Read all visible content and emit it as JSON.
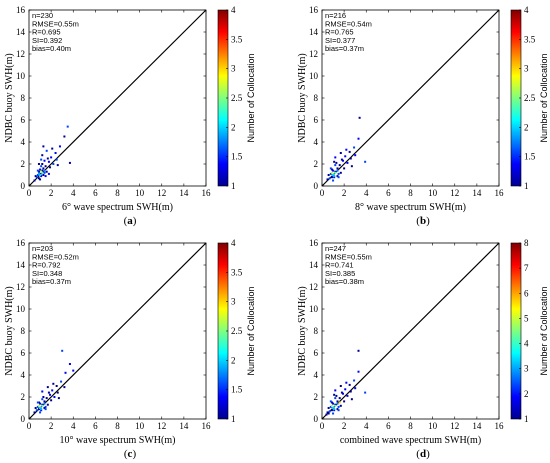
{
  "chart_data": [
    {
      "type": "scatter",
      "panel_label": "(a)",
      "xlabel": "6° wave spectrum SWH(m)",
      "ylabel": "NDBC buoy SWH(m)",
      "xlim": [
        0,
        16
      ],
      "ylim": [
        0,
        16
      ],
      "xticks": [
        "0",
        "2",
        "4",
        "6",
        "8",
        "10",
        "12",
        "14",
        "16"
      ],
      "yticks": [
        "0",
        "2",
        "4",
        "6",
        "8",
        "10",
        "12",
        "14",
        "16"
      ],
      "stats": [
        "n=230",
        "RMSE=0.55m",
        "R=0.695",
        "SI=0.392",
        "bias=0.40m"
      ],
      "colorbar": {
        "title": "Number of Collocation",
        "range": [
          1,
          4
        ],
        "ticks": [
          "1",
          "1.5",
          "2",
          "2.5",
          "3",
          "3.5",
          "4"
        ]
      },
      "reference_line": "1:1",
      "points": [
        [
          1.0,
          1.1
        ],
        [
          0.9,
          0.7
        ],
        [
          1.2,
          1.4
        ],
        [
          0.8,
          1.0
        ],
        [
          1.1,
          0.9
        ],
        [
          1.3,
          1.6
        ],
        [
          0.7,
          0.8
        ],
        [
          1.5,
          1.8
        ],
        [
          1.0,
          1.5
        ],
        [
          1.4,
          1.2
        ],
        [
          0.6,
          0.9
        ],
        [
          1.2,
          2.0
        ],
        [
          1.8,
          2.2
        ],
        [
          0.9,
          1.3
        ],
        [
          1.6,
          1.3
        ],
        [
          1.1,
          1.8
        ],
        [
          2.0,
          2.6
        ],
        [
          1.3,
          1.0
        ],
        [
          0.8,
          1.4
        ],
        [
          1.7,
          2.5
        ],
        [
          1.4,
          2.3
        ],
        [
          2.2,
          2.0
        ],
        [
          1.0,
          0.6
        ],
        [
          1.9,
          1.7
        ],
        [
          2.4,
          3.0
        ],
        [
          1.2,
          2.8
        ],
        [
          0.5,
          0.5
        ],
        [
          1.6,
          3.2
        ],
        [
          2.8,
          3.6
        ],
        [
          3.2,
          4.5
        ],
        [
          3.5,
          5.4
        ],
        [
          2.6,
          1.9
        ],
        [
          1.5,
          0.9
        ],
        [
          1.1,
          2.4
        ],
        [
          0.9,
          2.0
        ],
        [
          2.1,
          3.4
        ],
        [
          1.8,
          1.1
        ],
        [
          3.7,
          2.1
        ],
        [
          1.3,
          3.6
        ],
        [
          2.5,
          2.4
        ]
      ],
      "dense_points": [
        [
          1.0,
          1.0
        ],
        [
          1.2,
          1.2
        ],
        [
          1.4,
          1.4
        ],
        [
          0.9,
          1.1
        ],
        [
          1.1,
          1.3
        ]
      ]
    },
    {
      "type": "scatter",
      "panel_label": "(b)",
      "xlabel": "8° wave spectrum SWH(m)",
      "ylabel": "NDBC buoy SWH(m)",
      "xlim": [
        0,
        16
      ],
      "ylim": [
        0,
        16
      ],
      "xticks": [
        "0",
        "2",
        "4",
        "6",
        "8",
        "10",
        "12",
        "14",
        "16"
      ],
      "yticks": [
        "0",
        "2",
        "4",
        "6",
        "8",
        "10",
        "12",
        "14",
        "16"
      ],
      "stats": [
        "n=216",
        "RMSE=0.54m",
        "R=0.765",
        "SI=0.377",
        "bias=0.37m"
      ],
      "colorbar": {
        "title": "Number of Collocation",
        "range": [
          1,
          4
        ],
        "ticks": [
          "1",
          "1.5",
          "2",
          "2.5",
          "3",
          "3.5",
          "4"
        ]
      },
      "reference_line": "1:1",
      "points": [
        [
          1.0,
          1.0
        ],
        [
          0.9,
          0.8
        ],
        [
          1.2,
          1.3
        ],
        [
          0.8,
          1.1
        ],
        [
          1.1,
          0.8
        ],
        [
          1.4,
          1.6
        ],
        [
          0.7,
          0.7
        ],
        [
          1.6,
          1.9
        ],
        [
          1.0,
          1.4
        ],
        [
          1.5,
          1.1
        ],
        [
          0.6,
          1.0
        ],
        [
          1.3,
          2.1
        ],
        [
          1.9,
          2.3
        ],
        [
          0.9,
          1.5
        ],
        [
          1.7,
          1.2
        ],
        [
          1.2,
          1.9
        ],
        [
          2.1,
          2.7
        ],
        [
          1.4,
          0.9
        ],
        [
          0.8,
          1.6
        ],
        [
          1.8,
          2.4
        ],
        [
          2.3,
          2.1
        ],
        [
          1.0,
          0.5
        ],
        [
          2.0,
          1.6
        ],
        [
          2.5,
          3.1
        ],
        [
          1.2,
          2.6
        ],
        [
          0.5,
          0.6
        ],
        [
          1.7,
          3.0
        ],
        [
          2.9,
          3.5
        ],
        [
          3.3,
          4.3
        ],
        [
          2.7,
          1.8
        ],
        [
          1.5,
          0.8
        ],
        [
          1.1,
          2.2
        ],
        [
          2.2,
          3.3
        ],
        [
          3.9,
          2.2
        ],
        [
          3.4,
          6.2
        ],
        [
          2.6,
          2.5
        ],
        [
          3.0,
          2.8
        ]
      ],
      "dense_points": [
        [
          1.0,
          1.0
        ],
        [
          1.2,
          1.2
        ],
        [
          1.4,
          1.4
        ],
        [
          1.1,
          0.9
        ],
        [
          0.9,
          1.2
        ]
      ]
    },
    {
      "type": "scatter",
      "panel_label": "(c)",
      "xlabel": "10° wave spectrum SWH(m)",
      "ylabel": "NDBC buoy SWH(m)",
      "xlim": [
        0,
        16
      ],
      "ylim": [
        0,
        16
      ],
      "xticks": [
        "0",
        "2",
        "4",
        "6",
        "8",
        "10",
        "12",
        "14",
        "16"
      ],
      "yticks": [
        "0",
        "2",
        "4",
        "6",
        "8",
        "10",
        "12",
        "14",
        "16"
      ],
      "stats": [
        "n=203",
        "RMSE=0.52m",
        "R=0.792",
        "SI=0.348",
        "bias=0.37m"
      ],
      "colorbar": {
        "title": "Number of Collocation",
        "range": [
          1,
          4
        ],
        "ticks": [
          "1",
          "1.5",
          "2",
          "2.5",
          "3",
          "3.5",
          "4"
        ]
      },
      "reference_line": "1:1",
      "points": [
        [
          1.0,
          1.0
        ],
        [
          0.9,
          0.9
        ],
        [
          1.2,
          1.3
        ],
        [
          0.8,
          1.1
        ],
        [
          1.1,
          0.8
        ],
        [
          1.4,
          1.6
        ],
        [
          0.7,
          0.8
        ],
        [
          1.6,
          1.9
        ],
        [
          1.0,
          1.4
        ],
        [
          1.5,
          1.1
        ],
        [
          0.6,
          1.0
        ],
        [
          1.3,
          2.0
        ],
        [
          1.9,
          2.2
        ],
        [
          0.9,
          1.5
        ],
        [
          1.7,
          1.3
        ],
        [
          1.2,
          1.8
        ],
        [
          2.1,
          2.6
        ],
        [
          1.4,
          1.0
        ],
        [
          0.8,
          1.5
        ],
        [
          1.8,
          2.4
        ],
        [
          2.3,
          2.0
        ],
        [
          1.0,
          0.6
        ],
        [
          2.0,
          1.7
        ],
        [
          2.5,
          3.0
        ],
        [
          1.2,
          2.5
        ],
        [
          0.5,
          0.6
        ],
        [
          1.7,
          2.9
        ],
        [
          2.9,
          3.4
        ],
        [
          3.3,
          4.2
        ],
        [
          2.7,
          1.9
        ],
        [
          1.5,
          0.9
        ],
        [
          2.2,
          3.2
        ],
        [
          3.7,
          5.0
        ],
        [
          3.0,
          6.2
        ],
        [
          2.6,
          2.4
        ],
        [
          3.2,
          2.9
        ],
        [
          4.0,
          4.4
        ]
      ],
      "dense_points": [
        [
          1.0,
          1.0
        ],
        [
          1.2,
          1.2
        ],
        [
          1.4,
          1.4
        ],
        [
          1.1,
          0.9
        ],
        [
          0.9,
          1.2
        ]
      ]
    },
    {
      "type": "scatter",
      "panel_label": "(d)",
      "xlabel": "combined wave spectrum SWH(m)",
      "ylabel": "NDBC buoy SWH(m)",
      "xlim": [
        0,
        16
      ],
      "ylim": [
        0,
        16
      ],
      "xticks": [
        "0",
        "2",
        "4",
        "6",
        "8",
        "10",
        "12",
        "14",
        "16"
      ],
      "yticks": [
        "0",
        "2",
        "4",
        "6",
        "8",
        "10",
        "12",
        "14",
        "16"
      ],
      "stats": [
        "n=247",
        "RMSE=0.55m",
        "R=0.741",
        "SI=0.385",
        "bias=0.38m"
      ],
      "colorbar": {
        "title": "Number of Collocation",
        "range": [
          1,
          8
        ],
        "ticks": [
          "1",
          "2",
          "3",
          "4",
          "5",
          "6",
          "7",
          "8"
        ]
      },
      "reference_line": "1:1",
      "points": [
        [
          1.0,
          1.0
        ],
        [
          0.9,
          0.8
        ],
        [
          1.2,
          1.3
        ],
        [
          0.8,
          1.1
        ],
        [
          1.1,
          0.8
        ],
        [
          1.4,
          1.6
        ],
        [
          0.7,
          0.7
        ],
        [
          1.6,
          1.9
        ],
        [
          1.0,
          1.4
        ],
        [
          1.5,
          1.1
        ],
        [
          0.6,
          1.0
        ],
        [
          1.3,
          2.1
        ],
        [
          1.9,
          2.3
        ],
        [
          0.9,
          1.5
        ],
        [
          1.7,
          1.2
        ],
        [
          1.2,
          1.9
        ],
        [
          2.1,
          2.7
        ],
        [
          1.4,
          0.9
        ],
        [
          0.8,
          1.6
        ],
        [
          1.8,
          2.4
        ],
        [
          2.3,
          2.1
        ],
        [
          1.0,
          0.5
        ],
        [
          2.0,
          1.6
        ],
        [
          2.5,
          3.1
        ],
        [
          1.2,
          2.6
        ],
        [
          0.5,
          0.6
        ],
        [
          1.7,
          3.0
        ],
        [
          2.9,
          3.5
        ],
        [
          3.3,
          4.3
        ],
        [
          2.7,
          1.8
        ],
        [
          1.5,
          0.8
        ],
        [
          1.1,
          2.2
        ],
        [
          2.2,
          3.3
        ],
        [
          3.9,
          2.4
        ],
        [
          3.3,
          6.2
        ],
        [
          2.6,
          2.5
        ],
        [
          3.0,
          2.8
        ],
        [
          0.4,
          0.4
        ],
        [
          0.6,
          0.5
        ]
      ],
      "dense_points": [
        [
          1.0,
          1.0
        ],
        [
          1.2,
          1.2
        ],
        [
          1.4,
          1.4
        ],
        [
          1.1,
          0.9
        ],
        [
          0.9,
          1.2
        ],
        [
          1.6,
          1.5
        ]
      ]
    }
  ]
}
